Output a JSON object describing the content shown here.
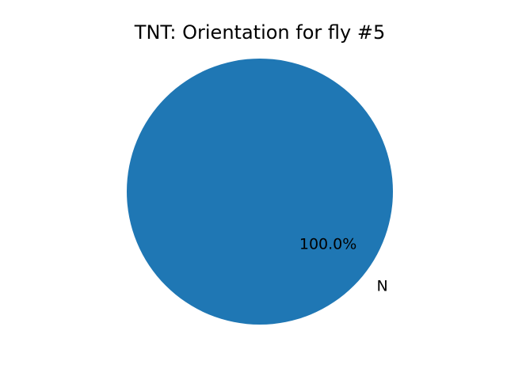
{
  "chart_data": {
    "type": "pie",
    "title": "TNT: Orientation for fly #5",
    "slices": [
      {
        "label": "N",
        "value": 100.0,
        "percent_label": "100.0%",
        "color": "#1f77b4"
      }
    ]
  }
}
